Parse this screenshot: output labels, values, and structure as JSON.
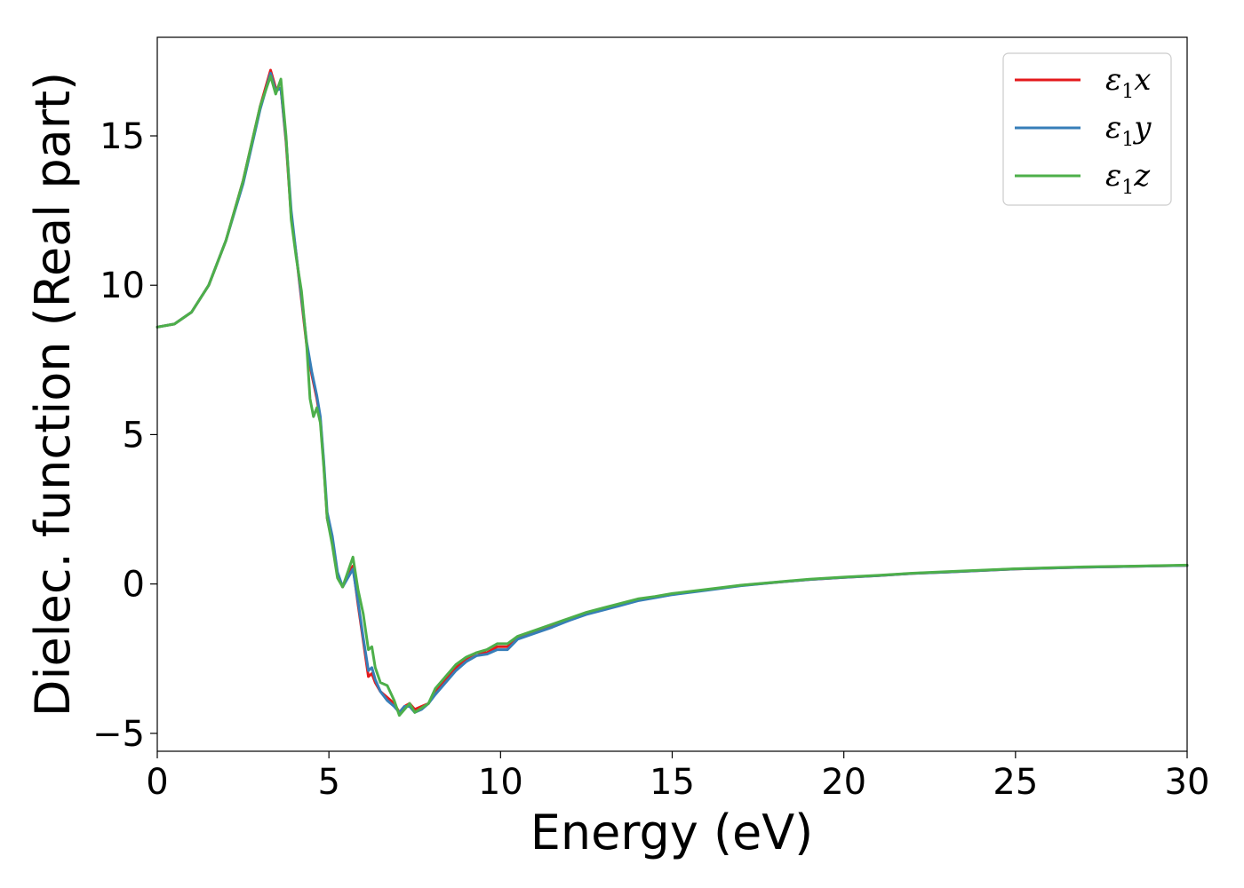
{
  "chart_data": {
    "type": "line",
    "title": "",
    "xlabel": "Energy (eV)",
    "ylabel": "Dielec. function (Real part)",
    "xlim": [
      0,
      30
    ],
    "ylim": [
      -5.6,
      18.3
    ],
    "xticks": [
      0,
      5,
      10,
      15,
      20,
      25,
      30
    ],
    "xtick_labels": [
      "0",
      "5",
      "10",
      "15",
      "20",
      "25",
      "30"
    ],
    "yticks": [
      -5,
      0,
      5,
      10,
      15
    ],
    "ytick_labels": [
      "−5",
      "0",
      "5",
      "10",
      "15"
    ],
    "grid": false,
    "legend_position": "top-right",
    "series": [
      {
        "name": "ε₁x",
        "legend_base": "ε",
        "legend_sub": "1",
        "legend_tail": "x",
        "color": "#e41a1c",
        "x": [
          0,
          0.5,
          1,
          1.5,
          2,
          2.5,
          3,
          3.3,
          3.45,
          3.6,
          3.75,
          3.9,
          4.05,
          4.2,
          4.35,
          4.5,
          4.65,
          4.75,
          4.85,
          4.95,
          5.1,
          5.25,
          5.4,
          5.55,
          5.7,
          5.85,
          6.0,
          6.15,
          6.25,
          6.35,
          6.5,
          6.7,
          6.9,
          7.05,
          7.2,
          7.35,
          7.5,
          7.7,
          7.9,
          8.1,
          8.4,
          8.7,
          9.0,
          9.3,
          9.6,
          9.9,
          10.2,
          10.5,
          11,
          11.5,
          12,
          12.5,
          13,
          13.5,
          14,
          14.5,
          15,
          16,
          17,
          18,
          19,
          20,
          21,
          22,
          23,
          24,
          25,
          26,
          27,
          28,
          29,
          30
        ],
        "y": [
          8.6,
          8.7,
          9.1,
          10.0,
          11.5,
          13.5,
          16.0,
          17.2,
          16.6,
          16.6,
          14.8,
          12.3,
          11.0,
          9.5,
          8.0,
          7.0,
          6.2,
          5.5,
          4.0,
          2.2,
          1.4,
          0.3,
          -0.1,
          0.3,
          0.6,
          -0.7,
          -1.9,
          -3.1,
          -3.0,
          -3.3,
          -3.6,
          -3.8,
          -4.0,
          -4.3,
          -4.1,
          -4.0,
          -4.2,
          -4.1,
          -4.0,
          -3.6,
          -3.2,
          -2.8,
          -2.5,
          -2.3,
          -2.3,
          -2.1,
          -2.1,
          -1.8,
          -1.6,
          -1.4,
          -1.2,
          -1.0,
          -0.85,
          -0.7,
          -0.55,
          -0.45,
          -0.35,
          -0.2,
          -0.05,
          0.05,
          0.15,
          0.22,
          0.28,
          0.35,
          0.4,
          0.45,
          0.5,
          0.53,
          0.56,
          0.58,
          0.6,
          0.62
        ]
      },
      {
        "name": "ε₁y",
        "legend_base": "ε",
        "legend_sub": "1",
        "legend_tail": "y",
        "color": "#377eb8",
        "x": [
          0,
          0.5,
          1,
          1.5,
          2,
          2.5,
          3,
          3.3,
          3.45,
          3.6,
          3.75,
          3.9,
          4.05,
          4.2,
          4.35,
          4.5,
          4.65,
          4.75,
          4.85,
          4.95,
          5.1,
          5.25,
          5.4,
          5.55,
          5.7,
          5.85,
          6.0,
          6.15,
          6.25,
          6.35,
          6.5,
          6.7,
          6.9,
          7.05,
          7.2,
          7.35,
          7.5,
          7.7,
          7.9,
          8.1,
          8.4,
          8.7,
          9.0,
          9.3,
          9.6,
          9.9,
          10.2,
          10.5,
          11,
          11.5,
          12,
          12.5,
          13,
          13.5,
          14,
          14.5,
          15,
          16,
          17,
          18,
          19,
          20,
          21,
          22,
          23,
          24,
          25,
          26,
          27,
          28,
          29,
          30
        ],
        "y": [
          8.6,
          8.7,
          9.1,
          10.0,
          11.5,
          13.4,
          15.9,
          17.1,
          16.5,
          16.6,
          14.9,
          12.5,
          11.0,
          9.6,
          8.1,
          7.1,
          6.3,
          5.6,
          4.1,
          2.4,
          1.6,
          0.4,
          -0.1,
          0.2,
          0.5,
          -0.6,
          -1.8,
          -2.9,
          -2.8,
          -3.2,
          -3.6,
          -3.9,
          -4.1,
          -4.3,
          -4.1,
          -4.1,
          -4.3,
          -4.2,
          -4.0,
          -3.7,
          -3.3,
          -2.9,
          -2.6,
          -2.4,
          -2.35,
          -2.2,
          -2.2,
          -1.85,
          -1.65,
          -1.45,
          -1.22,
          -1.02,
          -0.87,
          -0.72,
          -0.56,
          -0.46,
          -0.36,
          -0.21,
          -0.06,
          0.05,
          0.15,
          0.22,
          0.28,
          0.35,
          0.4,
          0.45,
          0.5,
          0.53,
          0.56,
          0.58,
          0.6,
          0.62
        ]
      },
      {
        "name": "ε₁z",
        "legend_base": "ε",
        "legend_sub": "1",
        "legend_tail": "z",
        "color": "#4daf4a",
        "x": [
          0,
          0.5,
          1,
          1.5,
          2,
          2.5,
          3,
          3.3,
          3.45,
          3.6,
          3.75,
          3.9,
          4.05,
          4.2,
          4.35,
          4.45,
          4.55,
          4.65,
          4.75,
          4.85,
          4.95,
          5.1,
          5.25,
          5.4,
          5.55,
          5.7,
          5.85,
          6.0,
          6.15,
          6.25,
          6.35,
          6.5,
          6.7,
          6.9,
          7.05,
          7.2,
          7.35,
          7.5,
          7.7,
          7.9,
          8.1,
          8.4,
          8.7,
          9.0,
          9.3,
          9.6,
          9.9,
          10.2,
          10.5,
          11,
          11.5,
          12,
          12.5,
          13,
          13.5,
          14,
          14.5,
          15,
          16,
          17,
          18,
          19,
          20,
          21,
          22,
          23,
          24,
          25,
          26,
          27,
          28,
          29,
          30
        ],
        "y": [
          8.6,
          8.7,
          9.1,
          10.0,
          11.5,
          13.5,
          16.0,
          17.0,
          16.4,
          16.9,
          15.0,
          12.2,
          10.9,
          9.8,
          8.0,
          6.2,
          5.6,
          5.9,
          5.4,
          3.9,
          2.2,
          1.3,
          0.2,
          -0.1,
          0.4,
          0.9,
          -0.2,
          -1.0,
          -2.2,
          -2.1,
          -2.8,
          -3.3,
          -3.4,
          -3.9,
          -4.4,
          -4.2,
          -4.0,
          -4.3,
          -4.15,
          -4.0,
          -3.5,
          -3.1,
          -2.7,
          -2.45,
          -2.3,
          -2.2,
          -2.0,
          -2.0,
          -1.75,
          -1.55,
          -1.35,
          -1.15,
          -0.95,
          -0.8,
          -0.65,
          -0.5,
          -0.42,
          -0.32,
          -0.18,
          -0.04,
          0.06,
          0.16,
          0.23,
          0.29,
          0.36,
          0.41,
          0.46,
          0.51,
          0.54,
          0.57,
          0.59,
          0.61,
          0.63
        ]
      }
    ]
  }
}
